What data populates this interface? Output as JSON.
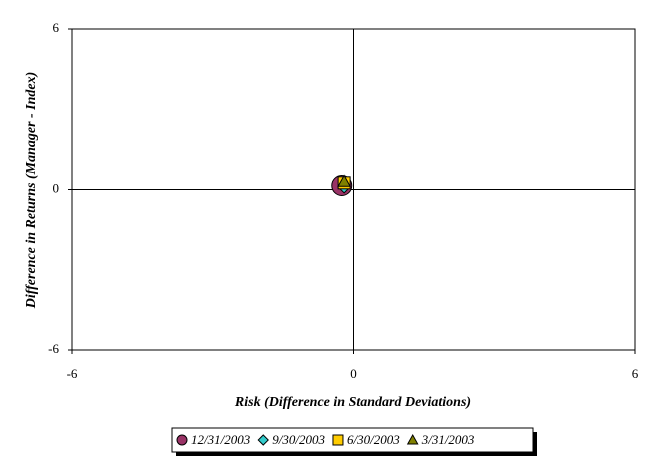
{
  "chart_data": {
    "type": "scatter",
    "x_label": "Risk (Difference in Standard Deviations)",
    "y_label": "Difference in Returns (Manager - Index)",
    "xlim": [
      -6,
      6
    ],
    "xticks": [
      -6,
      0,
      6
    ],
    "ylim": [
      -6,
      6
    ],
    "yticks": [
      -6,
      0,
      6
    ],
    "series": [
      {
        "name": "12/31/2003",
        "color": "#993366",
        "marker": "circle",
        "x": [
          -0.25
        ],
        "values": [
          0.15
        ]
      },
      {
        "name": "9/30/2003",
        "color": "#33cccc",
        "marker": "diamond",
        "x": [
          -0.2
        ],
        "values": [
          0.1
        ]
      },
      {
        "name": "6/30/2003",
        "color": "#ffcc00",
        "marker": "square",
        "x": [
          -0.2
        ],
        "values": [
          0.25
        ]
      },
      {
        "name": "3/31/2003",
        "color": "#808000",
        "marker": "triangle",
        "x": [
          -0.2
        ],
        "values": [
          0.3
        ]
      }
    ]
  }
}
